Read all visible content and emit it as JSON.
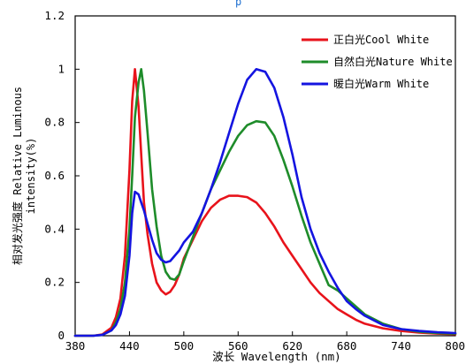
{
  "chart_data": {
    "type": "line",
    "title": "",
    "top_text_fragment": "p",
    "xlabel": "波长 Wavelength (nm)",
    "ylabel_line1": "相对发光强度 Relative Luminous",
    "ylabel_line2": "intensity(%)",
    "xlim": [
      380,
      800
    ],
    "ylim": [
      0,
      1.2
    ],
    "x_ticks": [
      "380",
      "440",
      "500",
      "560",
      "620",
      "680",
      "740",
      "800"
    ],
    "y_ticks": [
      "0",
      "0.2",
      "0.4",
      "0.6",
      "0.8",
      "1",
      "1.2"
    ],
    "grid": false,
    "legend_position": "top-right",
    "series": [
      {
        "name": "正白光Cool White",
        "color": "#e8131b",
        "x": [
          380,
          400,
          410,
          420,
          425,
          430,
          435,
          440,
          443,
          446,
          450,
          453,
          456,
          460,
          465,
          470,
          475,
          480,
          485,
          490,
          495,
          500,
          510,
          520,
          530,
          540,
          550,
          560,
          570,
          580,
          590,
          600,
          610,
          620,
          630,
          640,
          650,
          660,
          670,
          680,
          690,
          700,
          720,
          740,
          760,
          780,
          800
        ],
        "y": [
          0,
          0,
          0.005,
          0.03,
          0.07,
          0.14,
          0.3,
          0.62,
          0.88,
          1.0,
          0.86,
          0.68,
          0.5,
          0.38,
          0.27,
          0.2,
          0.17,
          0.155,
          0.165,
          0.19,
          0.23,
          0.29,
          0.36,
          0.43,
          0.48,
          0.51,
          0.525,
          0.525,
          0.52,
          0.5,
          0.46,
          0.41,
          0.35,
          0.3,
          0.25,
          0.2,
          0.16,
          0.13,
          0.1,
          0.08,
          0.06,
          0.045,
          0.028,
          0.018,
          0.012,
          0.008,
          0.006
        ]
      },
      {
        "name": "自然白光Nature White",
        "color": "#1e8c2a",
        "x": [
          380,
          400,
          410,
          420,
          425,
          430,
          435,
          440,
          443,
          446,
          450,
          453,
          456,
          460,
          465,
          470,
          475,
          480,
          485,
          490,
          495,
          500,
          510,
          520,
          530,
          540,
          550,
          560,
          570,
          580,
          590,
          600,
          610,
          620,
          630,
          640,
          650,
          660,
          670,
          680,
          690,
          700,
          720,
          740,
          760,
          780,
          800
        ],
        "y": [
          0,
          0,
          0.003,
          0.02,
          0.05,
          0.1,
          0.2,
          0.4,
          0.6,
          0.82,
          0.95,
          1.0,
          0.92,
          0.76,
          0.55,
          0.41,
          0.3,
          0.24,
          0.215,
          0.21,
          0.23,
          0.28,
          0.37,
          0.46,
          0.55,
          0.62,
          0.69,
          0.75,
          0.79,
          0.805,
          0.8,
          0.75,
          0.66,
          0.56,
          0.45,
          0.35,
          0.27,
          0.19,
          0.17,
          0.14,
          0.11,
          0.08,
          0.045,
          0.025,
          0.015,
          0.01,
          0.008
        ]
      },
      {
        "name": "暖白光Warm White",
        "color": "#1414e0",
        "x": [
          380,
          400,
          410,
          420,
          425,
          430,
          435,
          440,
          443,
          446,
          450,
          453,
          456,
          460,
          465,
          470,
          475,
          480,
          485,
          490,
          495,
          500,
          510,
          520,
          530,
          540,
          550,
          560,
          570,
          580,
          590,
          600,
          610,
          620,
          630,
          640,
          650,
          660,
          670,
          680,
          690,
          700,
          720,
          740,
          760,
          780,
          800
        ],
        "y": [
          0,
          0,
          0.003,
          0.02,
          0.04,
          0.08,
          0.15,
          0.3,
          0.46,
          0.54,
          0.53,
          0.5,
          0.47,
          0.42,
          0.36,
          0.31,
          0.285,
          0.275,
          0.28,
          0.3,
          0.32,
          0.35,
          0.39,
          0.46,
          0.55,
          0.65,
          0.76,
          0.87,
          0.96,
          1.0,
          0.99,
          0.93,
          0.82,
          0.68,
          0.52,
          0.4,
          0.31,
          0.24,
          0.18,
          0.13,
          0.1,
          0.075,
          0.04,
          0.025,
          0.018,
          0.013,
          0.01
        ]
      }
    ]
  }
}
